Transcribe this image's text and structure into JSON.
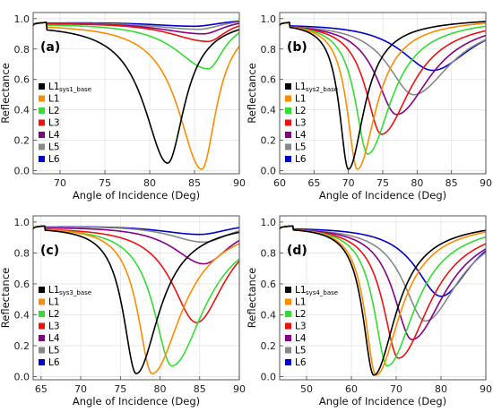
{
  "figure": {
    "xlabel": "Angle of Incidence (Deg)",
    "ylabel": "Reflectance"
  },
  "legend_labels": [
    "L1",
    "L2",
    "L3",
    "L4",
    "L5",
    "L6"
  ],
  "chart_data": [
    {
      "type": "line",
      "panel_label": "(a)",
      "xlim": [
        67,
        90
      ],
      "ylim": [
        0,
        1
      ],
      "xticks": [
        "70",
        "75",
        "80",
        "85",
        "90"
      ],
      "yticks": [
        "0.0",
        "0.2",
        "0.4",
        "0.6",
        "0.8",
        "1.0"
      ],
      "grid": true,
      "legend": "middle-left",
      "base_label": "L1",
      "base_subscript": "sys1_base",
      "critical_angle": 68.5,
      "series": [
        {
          "name": "L1sys1_base",
          "color": "#000000",
          "min_x": 82.0,
          "min_y": 0.05,
          "left_width": 3.2,
          "right_width": 2.3
        },
        {
          "name": "L1",
          "color": "#ff8c00",
          "min_x": 85.8,
          "min_y": 0.01,
          "left_width": 3.2,
          "right_width": 2.0
        },
        {
          "name": "L2",
          "color": "#33dd33",
          "min_x": 86.5,
          "min_y": 0.67,
          "left_width": 4.5,
          "right_width": 2.2
        },
        {
          "name": "L3",
          "color": "#ee1111",
          "min_x": 86.5,
          "min_y": 0.85,
          "left_width": 5.5,
          "right_width": 2.4
        },
        {
          "name": "L4",
          "color": "#880088",
          "min_x": 86.0,
          "min_y": 0.9,
          "left_width": 6.5,
          "right_width": 2.7
        },
        {
          "name": "L5",
          "color": "#888888",
          "min_x": 85.5,
          "min_y": 0.93,
          "left_width": 7.0,
          "right_width": 3.0
        },
        {
          "name": "L6",
          "color": "#0000cc",
          "min_x": 85.0,
          "min_y": 0.95,
          "left_width": 7.5,
          "right_width": 3.5
        }
      ]
    },
    {
      "type": "line",
      "panel_label": "(b)",
      "xlim": [
        60,
        90
      ],
      "ylim": [
        0,
        1
      ],
      "xticks": [
        "60",
        "65",
        "70",
        "75",
        "80",
        "85",
        "90"
      ],
      "yticks": [
        "0.0",
        "0.2",
        "0.4",
        "0.6",
        "0.8",
        "1.0"
      ],
      "grid": true,
      "legend": "middle-left",
      "base_label": "L1",
      "base_subscript": "sys2_base",
      "critical_angle": 61.5,
      "series": [
        {
          "name": "L1sys2_base",
          "color": "#000000",
          "min_x": 70.0,
          "min_y": 0.01,
          "left_width": 1.6,
          "right_width": 2.8
        },
        {
          "name": "L1",
          "color": "#ff8c00",
          "min_x": 71.3,
          "min_y": 0.01,
          "left_width": 1.8,
          "right_width": 3.3
        },
        {
          "name": "L2",
          "color": "#33dd33",
          "min_x": 72.8,
          "min_y": 0.11,
          "left_width": 2.2,
          "right_width": 4.2
        },
        {
          "name": "L3",
          "color": "#ee1111",
          "min_x": 74.8,
          "min_y": 0.24,
          "left_width": 2.8,
          "right_width": 5.2
        },
        {
          "name": "L4",
          "color": "#880088",
          "min_x": 77.0,
          "min_y": 0.37,
          "left_width": 3.6,
          "right_width": 6.0
        },
        {
          "name": "L5",
          "color": "#888888",
          "min_x": 79.5,
          "min_y": 0.5,
          "left_width": 4.6,
          "right_width": 6.5
        },
        {
          "name": "L6",
          "color": "#0000cc",
          "min_x": 82.3,
          "min_y": 0.66,
          "left_width": 5.8,
          "right_width": 6.5
        }
      ]
    },
    {
      "type": "line",
      "panel_label": "(c)",
      "xlim": [
        64,
        90
      ],
      "ylim": [
        0,
        1
      ],
      "xticks": [
        "65",
        "70",
        "75",
        "80",
        "85",
        "90"
      ],
      "yticks": [
        "0.0",
        "0.2",
        "0.4",
        "0.6",
        "0.8",
        "1.0"
      ],
      "grid": true,
      "legend": "middle-left",
      "base_label": "L1",
      "base_subscript": "sys3_base",
      "critical_angle": 65.5,
      "series": [
        {
          "name": "L1sys3_base",
          "color": "#000000",
          "min_x": 77.0,
          "min_y": 0.02,
          "left_width": 2.0,
          "right_width": 3.5
        },
        {
          "name": "L1",
          "color": "#ff8c00",
          "min_x": 79.0,
          "min_y": 0.02,
          "left_width": 2.2,
          "right_width": 4.5
        },
        {
          "name": "L2",
          "color": "#33dd33",
          "min_x": 81.5,
          "min_y": 0.07,
          "left_width": 2.8,
          "right_width": 5.0
        },
        {
          "name": "L3",
          "color": "#ee1111",
          "min_x": 84.6,
          "min_y": 0.35,
          "left_width": 3.8,
          "right_width": 4.3
        },
        {
          "name": "L4",
          "color": "#880088",
          "min_x": 85.5,
          "min_y": 0.73,
          "left_width": 4.8,
          "right_width": 4.0
        },
        {
          "name": "L5",
          "color": "#888888",
          "min_x": 85.5,
          "min_y": 0.87,
          "left_width": 5.5,
          "right_width": 4.0
        },
        {
          "name": "L6",
          "color": "#0000cc",
          "min_x": 85.0,
          "min_y": 0.92,
          "left_width": 7.0,
          "right_width": 4.5
        }
      ]
    },
    {
      "type": "line",
      "panel_label": "(d)",
      "xlim": [
        44,
        90
      ],
      "ylim": [
        0,
        1
      ],
      "xticks": [
        "50",
        "60",
        "70",
        "80",
        "90"
      ],
      "yticks": [
        "0.0",
        "0.2",
        "0.4",
        "0.6",
        "0.8",
        "1.0"
      ],
      "grid": true,
      "legend": "middle-left",
      "base_label": "L1",
      "base_subscript": "sys4_base",
      "critical_angle": 47.0,
      "series": [
        {
          "name": "L1sys4_base",
          "color": "#000000",
          "min_x": 65.0,
          "min_y": 0.01,
          "left_width": 3.0,
          "right_width": 6.0
        },
        {
          "name": "L1",
          "color": "#ff8c00",
          "min_x": 65.5,
          "min_y": 0.01,
          "left_width": 3.0,
          "right_width": 6.5
        },
        {
          "name": "L2",
          "color": "#33dd33",
          "min_x": 68.0,
          "min_y": 0.07,
          "left_width": 3.6,
          "right_width": 7.5
        },
        {
          "name": "L3",
          "color": "#ee1111",
          "min_x": 70.5,
          "min_y": 0.12,
          "left_width": 4.2,
          "right_width": 8.5
        },
        {
          "name": "L4",
          "color": "#880088",
          "min_x": 73.5,
          "min_y": 0.24,
          "left_width": 5.0,
          "right_width": 9.0
        },
        {
          "name": "L5",
          "color": "#888888",
          "min_x": 76.5,
          "min_y": 0.36,
          "left_width": 6.0,
          "right_width": 9.0
        },
        {
          "name": "L6",
          "color": "#0000cc",
          "min_x": 80.0,
          "min_y": 0.52,
          "left_width": 7.0,
          "right_width": 8.0
        }
      ]
    }
  ]
}
